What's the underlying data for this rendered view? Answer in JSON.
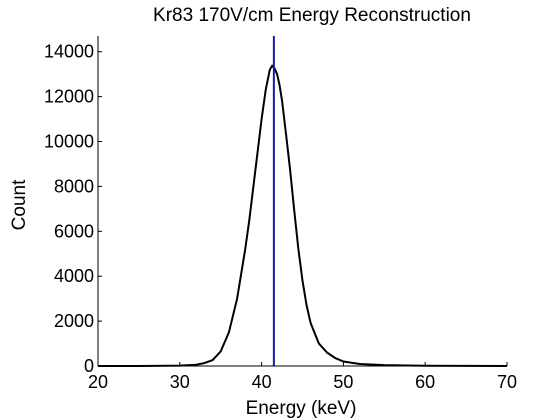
{
  "chart_data": {
    "type": "line",
    "title": "Kr83 170V/cm Energy Reconstruction",
    "xlabel": "Energy (keV)",
    "ylabel": "Count",
    "xlim": [
      20,
      70
    ],
    "ylim": [
      0,
      14700
    ],
    "x_ticks": [
      20,
      30,
      40,
      50,
      60,
      70
    ],
    "y_ticks": [
      0,
      2000,
      4000,
      6000,
      8000,
      10000,
      12000,
      14000
    ],
    "grid": false,
    "legend": "none",
    "series": [
      {
        "color": "#000000",
        "x": [
          20,
          25,
          30,
          32,
          33,
          34,
          35,
          36,
          37,
          38,
          38.5,
          39,
          39.5,
          40,
          40.5,
          41,
          41.3,
          41.6,
          41.9,
          42.2,
          42.5,
          43,
          43.5,
          44,
          44.5,
          45,
          45.5,
          46,
          47,
          48,
          49,
          50,
          52,
          55,
          60,
          65,
          70
        ],
        "y": [
          0,
          0,
          20,
          60,
          130,
          260,
          650,
          1500,
          3000,
          5200,
          6500,
          8000,
          9500,
          11000,
          12300,
          13200,
          13380,
          13250,
          13000,
          12500,
          11800,
          10300,
          8700,
          6900,
          5200,
          3800,
          2700,
          1900,
          1000,
          600,
          350,
          200,
          90,
          40,
          15,
          5,
          0
        ]
      }
    ],
    "vertical_marker": {
      "x": 41.5,
      "color": "#1a1aa8"
    }
  }
}
